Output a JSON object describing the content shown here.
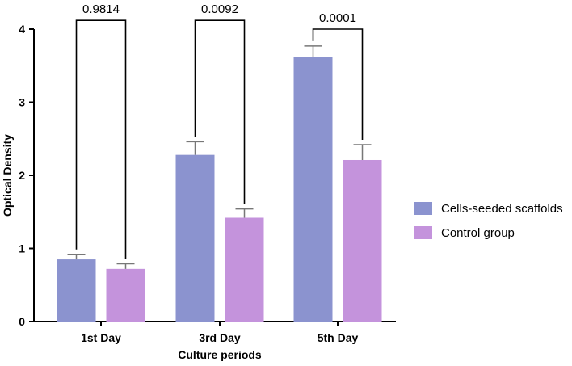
{
  "chart_data": {
    "type": "bar",
    "title": "",
    "xlabel": "Culture periods",
    "ylabel": "Optical Density",
    "ylim": [
      0,
      4
    ],
    "yticks": [
      0,
      1,
      2,
      3,
      4
    ],
    "categories": [
      "1st Day",
      "3rd Day",
      "5th Day"
    ],
    "series": [
      {
        "name": "Cells-seeded scaffolds",
        "color": "#8b93cf",
        "values": [
          0.85,
          2.28,
          3.62
        ],
        "errors": [
          0.07,
          0.18,
          0.15
        ]
      },
      {
        "name": "Control group",
        "color": "#c493dc",
        "values": [
          0.72,
          1.42,
          2.21
        ],
        "errors": [
          0.07,
          0.12,
          0.21
        ]
      }
    ],
    "annotations": [
      {
        "category": "1st Day",
        "text": "0.9814",
        "level": 4.12
      },
      {
        "category": "3rd Day",
        "text": "0.0092",
        "level": 4.12
      },
      {
        "category": "5th Day",
        "text": "0.0001",
        "level": 4.0
      }
    ],
    "legend": {
      "position": "right"
    }
  }
}
